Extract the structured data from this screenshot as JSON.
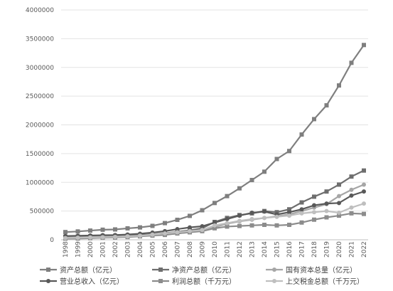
{
  "chart_data": {
    "type": "line",
    "title": "",
    "xlabel": "",
    "ylabel": "",
    "ylim": [
      0,
      4000000
    ],
    "yticks": [
      "0",
      "500000",
      "1000000",
      "1500000",
      "2000000",
      "2500000",
      "3000000",
      "3500000",
      "4000000"
    ],
    "grid": true,
    "legend_position": "bottom",
    "categories": [
      "1998",
      "1999",
      "2000",
      "2001",
      "2002",
      "2003",
      "2004",
      "2005",
      "2006",
      "2007",
      "2008",
      "2009",
      "2010",
      "2011",
      "2012",
      "2013",
      "2014",
      "2015",
      "2016",
      "2017",
      "2018",
      "2019",
      "2020",
      "2021",
      "2022"
    ],
    "series": [
      {
        "name": "资产总额（亿元）",
        "color": "#7f7f7f",
        "marker": "square",
        "values": [
          134000,
          145000,
          160000,
          175000,
          180000,
          199000,
          215000,
          242000,
          290000,
          347000,
          416000,
          514000,
          640000,
          760000,
          895000,
          1040000,
          1185000,
          1406000,
          1545000,
          1832000,
          2100000,
          2340000,
          2686000,
          3080000,
          3390000
        ]
      },
      {
        "name": "净资产总额（亿元）",
        "color": "#6e6e6e",
        "marker": "square",
        "values": [
          50000,
          55000,
          60000,
          66000,
          68000,
          75000,
          82000,
          95000,
          115000,
          138000,
          165000,
          200000,
          310000,
          380000,
          430000,
          460000,
          500000,
          480000,
          530000,
          650000,
          750000,
          840000,
          960000,
          1100000,
          1205000
        ]
      },
      {
        "name": "国有资本总量（亿元）",
        "color": "#a6a6a6",
        "marker": "circle",
        "values": [
          40000,
          44000,
          48000,
          53000,
          55000,
          60000,
          66000,
          76000,
          92000,
          110000,
          132000,
          160000,
          220000,
          280000,
          320000,
          350000,
          380000,
          410000,
          440000,
          500000,
          560000,
          620000,
          760000,
          870000,
          960000
        ]
      },
      {
        "name": "营业总收入（亿元）",
        "color": "#595959",
        "marker": "circle",
        "values": [
          65000,
          70000,
          75000,
          80000,
          82000,
          92000,
          105000,
          125000,
          150000,
          185000,
          215000,
          235000,
          300000,
          360000,
          420000,
          470000,
          490000,
          440000,
          480000,
          530000,
          600000,
          630000,
          640000,
          770000,
          840000
        ]
      },
      {
        "name": "利润总额（千万元）",
        "color": "#8c8c8c",
        "marker": "square",
        "values": [
          20000,
          22000,
          28000,
          35000,
          40000,
          48000,
          60000,
          72000,
          85000,
          110000,
          130000,
          150000,
          200000,
          230000,
          240000,
          250000,
          260000,
          250000,
          260000,
          300000,
          350000,
          390000,
          420000,
          460000,
          450000
        ]
      },
      {
        "name": "上交税金总额（千万元）",
        "color": "#bfbfbf",
        "marker": "circle",
        "values": [
          30000,
          35000,
          40000,
          45000,
          50000,
          60000,
          70000,
          90000,
          110000,
          130000,
          150000,
          170000,
          250000,
          290000,
          330000,
          360000,
          380000,
          400000,
          420000,
          460000,
          480000,
          500000,
          470000,
          560000,
          630000
        ]
      }
    ]
  }
}
